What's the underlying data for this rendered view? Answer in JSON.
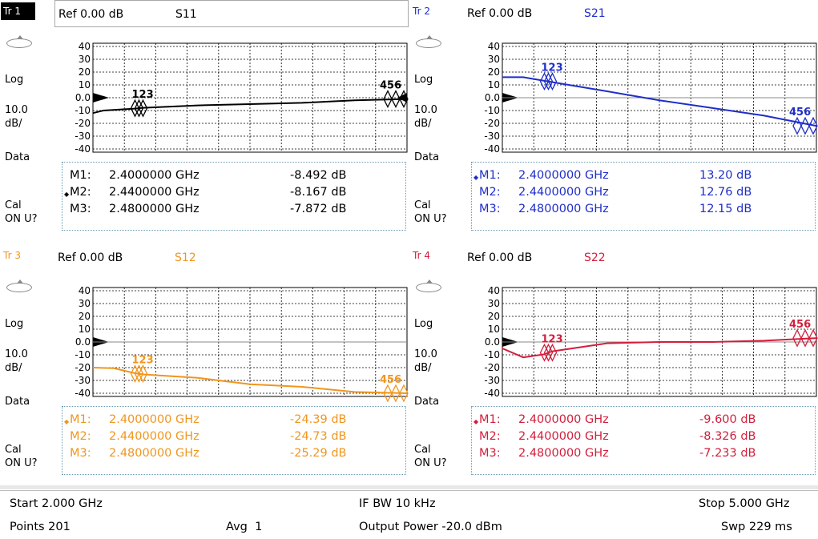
{
  "colors": {
    "tr1": "#000000",
    "tr2": "#1f2ec8",
    "tr3": "#f0961e",
    "tr4": "#d21e3c",
    "grid": "#000000",
    "table_border": "#6a9bb5"
  },
  "traces": [
    {
      "id": "Tr 1",
      "ref": "Ref 0.00 dB",
      "param": "S11",
      "active": true,
      "scale": "Log",
      "scale_val": "10.0",
      "scale_unit": "dB/",
      "data_label": "Data",
      "cal1": "Cal",
      "cal2": "ON U?",
      "marker_tag_left": "123",
      "marker_tag_right": "456",
      "markers": [
        {
          "name": "M1:",
          "freq": "2.4000000 GHz",
          "value": "-8.492 dB",
          "active": false
        },
        {
          "name": "M2:",
          "freq": "2.4400000 GHz",
          "value": "-8.167 dB",
          "active": true
        },
        {
          "name": "M3:",
          "freq": "2.4800000 GHz",
          "value": "-7.872 dB",
          "active": false
        }
      ],
      "y_ticks": [
        "40",
        "30",
        "20",
        "10",
        "0.0",
        "-10",
        "-20",
        "-30",
        "-40"
      ]
    },
    {
      "id": "Tr 2",
      "ref": "Ref 0.00 dB",
      "param": "S21",
      "active": false,
      "scale": "Log",
      "scale_val": "10.0",
      "scale_unit": "dB/",
      "data_label": "Data",
      "cal1": "Cal",
      "cal2": "ON U?",
      "marker_tag_left": "123",
      "marker_tag_right": "456",
      "markers": [
        {
          "name": "M1:",
          "freq": "2.4000000 GHz",
          "value": "13.20 dB",
          "active": true
        },
        {
          "name": "M2:",
          "freq": "2.4400000 GHz",
          "value": "12.76 dB",
          "active": false
        },
        {
          "name": "M3:",
          "freq": "2.4800000 GHz",
          "value": "12.15 dB",
          "active": false
        }
      ],
      "y_ticks": [
        "40",
        "30",
        "20",
        "10",
        "0.0",
        "-10",
        "-20",
        "-30",
        "-40"
      ]
    },
    {
      "id": "Tr 3",
      "ref": "Ref 0.00 dB",
      "param": "S12",
      "active": false,
      "scale": "Log",
      "scale_val": "10.0",
      "scale_unit": "dB/",
      "data_label": "Data",
      "cal1": "Cal",
      "cal2": "ON U?",
      "marker_tag_left": "123",
      "marker_tag_right": "456",
      "markers": [
        {
          "name": "M1:",
          "freq": "2.4000000 GHz",
          "value": "-24.39 dB",
          "active": true
        },
        {
          "name": "M2:",
          "freq": "2.4400000 GHz",
          "value": "-24.73 dB",
          "active": false
        },
        {
          "name": "M3:",
          "freq": "2.4800000 GHz",
          "value": "-25.29 dB",
          "active": false
        }
      ],
      "y_ticks": [
        "40",
        "30",
        "20",
        "10",
        "0.0",
        "-10",
        "-20",
        "-30",
        "-40"
      ]
    },
    {
      "id": "Tr 4",
      "ref": "Ref 0.00 dB",
      "param": "S22",
      "active": false,
      "scale": "Log",
      "scale_val": "10.0",
      "scale_unit": "dB/",
      "data_label": "Data",
      "cal1": "Cal",
      "cal2": "ON U?",
      "marker_tag_left": "123",
      "marker_tag_right": "456",
      "markers": [
        {
          "name": "M1:",
          "freq": "2.4000000 GHz",
          "value": "-9.600 dB",
          "active": true
        },
        {
          "name": "M2:",
          "freq": "2.4400000 GHz",
          "value": "-8.326 dB",
          "active": false
        },
        {
          "name": "M3:",
          "freq": "2.4800000 GHz",
          "value": "-7.233 dB",
          "active": false
        }
      ],
      "y_ticks": [
        "40",
        "30",
        "20",
        "10",
        "0.0",
        "-10",
        "-20",
        "-30",
        "-40"
      ]
    }
  ],
  "status": {
    "start": "Start 2.000 GHz",
    "points": "Points 201",
    "avg": "Avg  1",
    "ifbw": "IF BW 10 kHz",
    "power": "Output Power -20.0 dBm",
    "stop": "Stop 5.000 GHz",
    "sweep": "Swp 229 ms"
  },
  "chart_data": [
    {
      "type": "line",
      "title": "S11",
      "ylim": [
        -40,
        40
      ],
      "ylabel": "dB",
      "x_range_ghz": [
        2.0,
        5.0
      ],
      "x": [
        2.0,
        2.1,
        2.4,
        2.44,
        2.48,
        3.0,
        3.5,
        4.0,
        4.5,
        5.0
      ],
      "values": [
        -12,
        -10,
        -8.5,
        -8.2,
        -7.9,
        -6,
        -5,
        -4,
        -2,
        -1
      ]
    },
    {
      "type": "line",
      "title": "S21",
      "ylim": [
        -40,
        40
      ],
      "ylabel": "dB",
      "x_range_ghz": [
        2.0,
        5.0
      ],
      "x": [
        2.0,
        2.2,
        2.4,
        2.44,
        2.48,
        3.0,
        3.5,
        4.0,
        4.5,
        5.0
      ],
      "values": [
        16,
        16,
        13.2,
        12.76,
        12.15,
        5,
        -2,
        -8,
        -14,
        -22
      ]
    },
    {
      "type": "line",
      "title": "S12",
      "ylim": [
        -40,
        40
      ],
      "ylabel": "dB",
      "x_range_ghz": [
        2.0,
        5.0
      ],
      "x": [
        2.0,
        2.2,
        2.4,
        2.44,
        2.48,
        3.0,
        3.5,
        4.0,
        4.5,
        5.0
      ],
      "values": [
        -20,
        -20.5,
        -24.39,
        -24.73,
        -25.29,
        -28,
        -33,
        -35,
        -39,
        -40
      ]
    },
    {
      "type": "line",
      "title": "S22",
      "ylim": [
        -40,
        40
      ],
      "ylabel": "dB",
      "x_range_ghz": [
        2.0,
        5.0
      ],
      "x": [
        2.0,
        2.2,
        2.4,
        2.44,
        2.48,
        3.0,
        3.5,
        4.0,
        4.5,
        5.0
      ],
      "values": [
        -5,
        -12,
        -9.6,
        -8.33,
        -7.23,
        -1,
        0,
        0,
        1,
        3
      ]
    }
  ]
}
